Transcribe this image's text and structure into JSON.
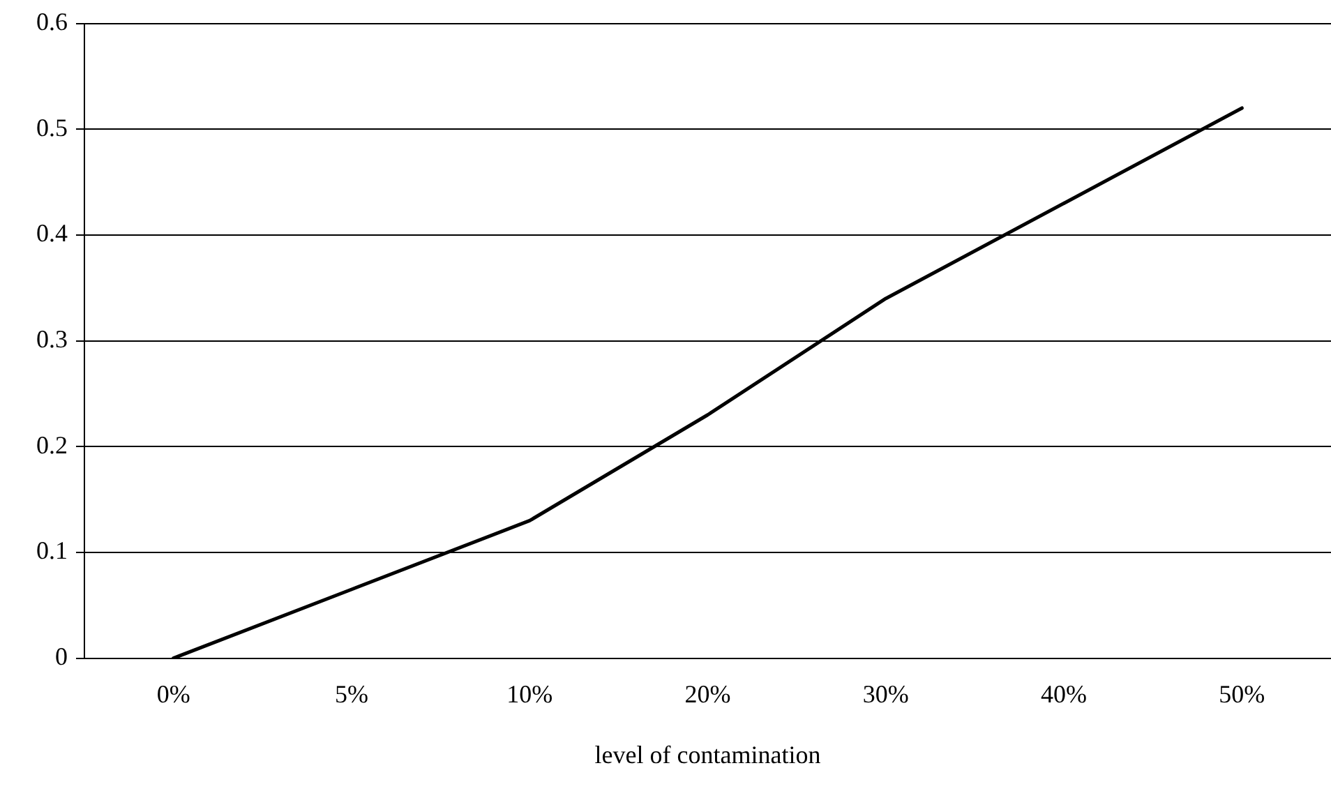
{
  "chart_data": {
    "type": "line",
    "xlabel": "level of contamination",
    "categories": [
      "0%",
      "5%",
      "10%",
      "20%",
      "30%",
      "40%",
      "50%"
    ],
    "series": [
      {
        "color": "#000000",
        "values": [
          0,
          0.065,
          0.13,
          0.23,
          0.34,
          0.43,
          0.52
        ]
      }
    ],
    "ylim": [
      0,
      0.6
    ],
    "yticks": [
      0,
      0.1,
      0.2,
      0.3,
      0.4,
      0.5,
      0.6
    ],
    "grid": "y",
    "legend": false,
    "marker": "none",
    "line_style": "solid"
  }
}
